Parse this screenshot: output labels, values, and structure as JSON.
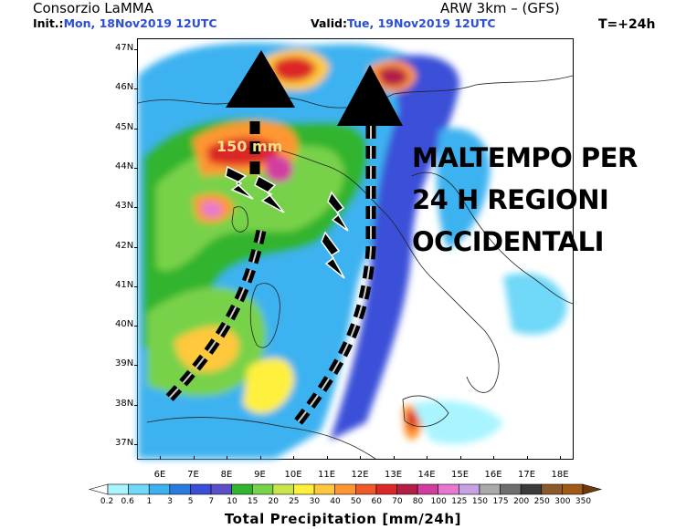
{
  "header": {
    "org": "Consorzio LaMMA",
    "model": "ARW 3km – (GFS)",
    "init_prefix": "Init.:",
    "init_value": "Mon, 18Nov2019  12UTC",
    "valid_prefix": "Valid:",
    "valid_value": "Tue, 19Nov2019  12UTC",
    "step": "T=+24h"
  },
  "map": {
    "lat_labels": [
      "47N",
      "46N",
      "45N",
      "44N",
      "43N",
      "42N",
      "41N",
      "40N",
      "39N",
      "38N",
      "37N"
    ],
    "lon_labels": [
      "6E",
      "7E",
      "8E",
      "9E",
      "10E",
      "11E",
      "12E",
      "13E",
      "14E",
      "15E",
      "16E",
      "17E",
      "18E"
    ],
    "amount_label": "150 mm",
    "headline": [
      "MALTEMPO PER",
      "24 H REGIONI",
      "OCCIDENTALI"
    ],
    "icons": [
      "triangle-up-icon",
      "triangle-up-icon",
      "lightning-bolt-icon",
      "lightning-bolt-icon",
      "lightning-bolt-icon",
      "lightning-bolt-icon",
      "dashed-arrow-path"
    ]
  },
  "legend": {
    "title": "Total Precipitation [mm/24h]",
    "labels": [
      "0.2",
      "0.6",
      "1",
      "3",
      "5",
      "7",
      "10",
      "15",
      "20",
      "25",
      "30",
      "40",
      "50",
      "60",
      "70",
      "80",
      "100",
      "125",
      "150",
      "175",
      "200",
      "250",
      "300",
      "350"
    ],
    "colors": [
      "#ffffff",
      "#a8f5ff",
      "#70d8f8",
      "#3cb2f0",
      "#2a7be0",
      "#3a4fd8",
      "#5a4fc8",
      "#32b42f",
      "#78d24a",
      "#c8e64a",
      "#fff03c",
      "#ffc83c",
      "#ff9632",
      "#f05a28",
      "#dc2828",
      "#b41e46",
      "#d23ca0",
      "#e678d2",
      "#c8a0e6",
      "#aaaaaa",
      "#6e6e6e",
      "#3a3a3a",
      "#8c5a2a",
      "#a05a14",
      "#6e3c0a"
    ]
  }
}
